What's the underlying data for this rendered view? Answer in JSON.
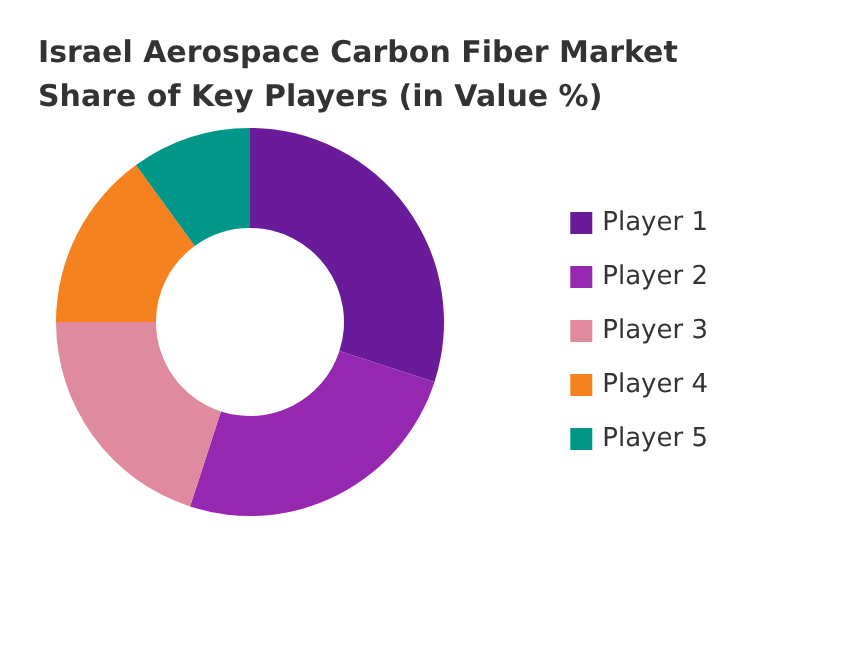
{
  "chart_data": {
    "type": "donut",
    "title": "Israel Aerospace Carbon Fiber Market Share of Key Players (in Value %)",
    "categories": [
      "Player 1",
      "Player 2",
      "Player 3",
      "Player 4",
      "Player 5"
    ],
    "values": [
      30,
      25,
      20,
      15,
      10
    ],
    "colors": [
      "#6a1b9a",
      "#9527b0",
      "#e08a9f",
      "#f5821f",
      "#009688"
    ],
    "legend": "right"
  }
}
